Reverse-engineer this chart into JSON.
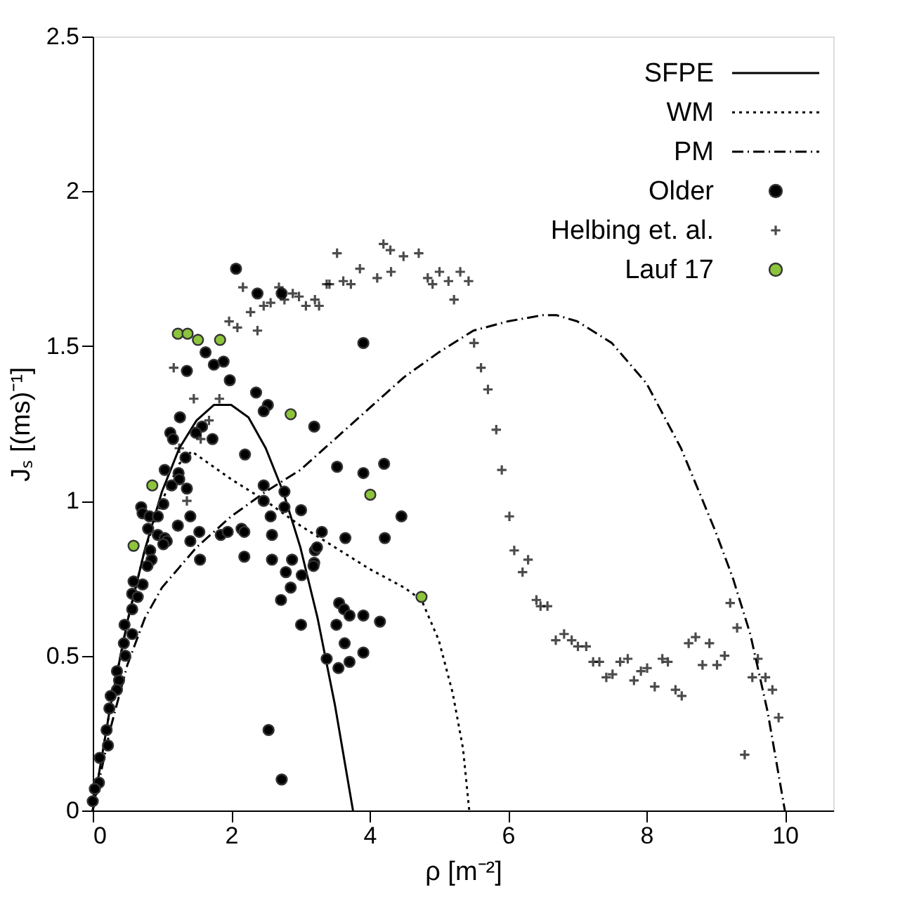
{
  "chart_data": {
    "type": "scatter",
    "xlabel": "ρ [m⁻²]",
    "ylabel": "Jₛ [(ms)⁻¹]",
    "xlim": [
      0,
      10.7
    ],
    "xticks": [
      0,
      2,
      4,
      6,
      8,
      10
    ],
    "ylim": [
      0,
      2.5
    ],
    "yticks": [
      0,
      0.5,
      1,
      1.5,
      2,
      2.5
    ],
    "grid": false,
    "legend": "top right",
    "series": [
      {
        "name": "SFPE",
        "type": "line",
        "color": "#000000",
        "line_style": "solid",
        "x": [
          0,
          0.25,
          0.5,
          0.75,
          1.0,
          1.25,
          1.5,
          1.75,
          2.0,
          2.25,
          2.5,
          2.75,
          3.0,
          3.25,
          3.5,
          3.76
        ],
        "values": [
          0,
          0.33,
          0.61,
          0.84,
          1.03,
          1.17,
          1.26,
          1.31,
          1.31,
          1.27,
          1.17,
          1.03,
          0.85,
          0.62,
          0.34,
          0
        ]
      },
      {
        "name": "WM",
        "type": "line",
        "color": "#000000",
        "line_style": "dotted",
        "x": [
          0,
          0.25,
          0.5,
          0.75,
          1.0,
          1.25,
          1.43,
          2.0,
          2.5,
          3.0,
          3.5,
          4.0,
          4.5,
          4.75,
          5.0,
          5.2,
          5.35,
          5.44
        ],
        "values": [
          0,
          0.33,
          0.61,
          0.84,
          1.0,
          1.12,
          1.16,
          1.07,
          1.0,
          0.92,
          0.85,
          0.78,
          0.72,
          0.68,
          0.55,
          0.38,
          0.2,
          0
        ]
      },
      {
        "name": "PM",
        "type": "line",
        "color": "#000000",
        "line_style": "dashdot",
        "x": [
          0,
          0.25,
          0.5,
          0.75,
          1.0,
          1.5,
          2.0,
          2.5,
          3.0,
          3.5,
          4.0,
          4.5,
          5.0,
          5.5,
          6.0,
          6.5,
          6.7,
          7.0,
          7.5,
          8.0,
          8.5,
          9.0,
          9.25,
          9.5,
          9.75,
          10.0
        ],
        "values": [
          0,
          0.26,
          0.47,
          0.62,
          0.72,
          0.85,
          0.95,
          1.03,
          1.1,
          1.2,
          1.3,
          1.4,
          1.48,
          1.55,
          1.58,
          1.6,
          1.6,
          1.58,
          1.51,
          1.38,
          1.17,
          0.9,
          0.75,
          0.57,
          0.32,
          0
        ]
      },
      {
        "name": "Older",
        "color": "#000000",
        "marker": "circle",
        "x": [
          2.07,
          2.38,
          2.73,
          1.63,
          1.75,
          1.89,
          1.36,
          1.98,
          2.36,
          2.53,
          2.47,
          3.2,
          1.26,
          1.12,
          1.16,
          1.58,
          1.49,
          1.73,
          1.24,
          1.25,
          1.34,
          1.04,
          1.14,
          1.02,
          1.36,
          2.2,
          2.47,
          2.47,
          2.77,
          2.77,
          2.57,
          3.01,
          0.7,
          0.72,
          0.82,
          0.94,
          1.41,
          1.23,
          1.41,
          1.54,
          1.85,
          1.95,
          2.15,
          2.19,
          0.8,
          0.94,
          1.04,
          1.07,
          1.02,
          0.83,
          0.85,
          0.79,
          1.55,
          2.19,
          2.59,
          2.59,
          2.88,
          3.2,
          3.31,
          3.21,
          2.79,
          2.86,
          2.72,
          3.02,
          3.01,
          0.72,
          0.59,
          0.57,
          0.65,
          0.57,
          0.46,
          0.57,
          0.45,
          0.47,
          0.35,
          0.38,
          0.35,
          0.26,
          0.24,
          0.2,
          0.22,
          0.1,
          0.09,
          0.03,
          0.0,
          2.54,
          2.73,
          3.38,
          3.91,
          3.53,
          3.91,
          4.21,
          4.46,
          4.22,
          3.65,
          3.24,
          3.19,
          3.56,
          3.63,
          3.71,
          3.91,
          4.15,
          3.52,
          3.64,
          3.71,
          3.55,
          3.91
        ],
        "values": [
          1.75,
          1.67,
          1.67,
          1.48,
          1.44,
          1.45,
          1.42,
          1.39,
          1.35,
          1.31,
          1.29,
          1.24,
          1.27,
          1.22,
          1.2,
          1.24,
          1.22,
          1.2,
          1.09,
          1.07,
          1.14,
          1.1,
          1.05,
          0.99,
          1.04,
          1.15,
          1.05,
          1.0,
          1.03,
          0.98,
          0.95,
          0.97,
          0.98,
          0.96,
          0.95,
          0.95,
          0.95,
          0.92,
          0.87,
          0.9,
          0.89,
          0.9,
          0.91,
          0.9,
          0.91,
          0.89,
          0.88,
          0.87,
          0.86,
          0.84,
          0.81,
          0.79,
          0.81,
          0.82,
          0.89,
          0.81,
          0.81,
          0.8,
          0.9,
          0.84,
          0.77,
          0.72,
          0.68,
          0.76,
          0.6,
          0.73,
          0.74,
          0.7,
          0.69,
          0.65,
          0.6,
          0.57,
          0.54,
          0.5,
          0.45,
          0.42,
          0.39,
          0.37,
          0.33,
          0.26,
          0.21,
          0.17,
          0.09,
          0.07,
          0.03,
          0.26,
          0.1,
          0.49,
          1.51,
          1.11,
          1.09,
          1.12,
          0.95,
          0.88,
          0.88,
          0.85,
          0.79,
          0.67,
          0.65,
          0.63,
          0.63,
          0.61,
          0.6,
          0.54,
          0.48,
          0.46,
          0.51
        ]
      },
      {
        "name": "Helbing et. al.",
        "color": "#000000",
        "marker": "cross",
        "x": [
          2.17,
          2.28,
          2.47,
          2.57,
          2.69,
          2.77,
          2.89,
          2.98,
          3.08,
          3.21,
          3.27,
          3.38,
          1.97,
          2.09,
          2.38,
          1.17,
          1.46,
          1.83,
          1.68,
          1.56,
          1.25,
          1.36,
          3.53,
          3.86,
          4.31,
          4.11,
          4.84,
          5.01,
          5.14,
          5.31,
          5.43,
          5.22,
          4.91,
          3.42,
          3.62,
          3.73,
          4.49,
          4.71,
          4.2,
          4.3,
          5.51,
          5.61,
          5.71,
          5.83,
          5.91,
          6.02,
          6.09,
          6.29,
          6.21,
          6.41,
          6.47,
          6.57,
          6.69,
          6.81,
          6.92,
          7.01,
          7.13,
          7.23,
          7.32,
          7.42,
          7.51,
          7.62,
          7.73,
          7.82,
          7.92,
          8.01,
          8.12,
          8.23,
          8.31,
          8.42,
          8.51,
          8.61,
          8.71,
          8.91,
          8.81,
          9.02,
          9.13,
          9.21,
          9.31,
          9.53,
          9.61,
          9.72,
          9.82,
          9.91,
          9.42
        ],
        "values": [
          1.69,
          1.61,
          1.63,
          1.64,
          1.69,
          1.65,
          1.67,
          1.66,
          1.63,
          1.65,
          1.63,
          1.7,
          1.58,
          1.56,
          1.55,
          1.43,
          1.33,
          1.33,
          1.26,
          1.2,
          1.17,
          1.0,
          1.8,
          1.75,
          1.74,
          1.72,
          1.72,
          1.74,
          1.71,
          1.74,
          1.71,
          1.65,
          1.7,
          1.7,
          1.71,
          1.7,
          1.79,
          1.8,
          1.83,
          1.81,
          1.51,
          1.43,
          1.36,
          1.23,
          1.1,
          0.95,
          0.84,
          0.81,
          0.77,
          0.68,
          0.66,
          0.66,
          0.55,
          0.57,
          0.55,
          0.53,
          0.53,
          0.48,
          0.48,
          0.43,
          0.44,
          0.48,
          0.49,
          0.42,
          0.45,
          0.46,
          0.4,
          0.49,
          0.48,
          0.39,
          0.37,
          0.54,
          0.56,
          0.54,
          0.47,
          0.47,
          0.5,
          0.67,
          0.59,
          0.43,
          0.49,
          0.43,
          0.39,
          0.3,
          0.18
        ]
      },
      {
        "name": "Lauf 17",
        "color": "#8cc43c",
        "marker": "circle",
        "x": [
          0.59,
          0.86,
          1.23,
          1.37,
          1.52,
          1.84,
          2.86,
          4.01,
          4.75
        ],
        "values": [
          0.855,
          1.05,
          1.54,
          1.54,
          1.52,
          1.52,
          1.28,
          1.02,
          0.69
        ]
      }
    ]
  }
}
